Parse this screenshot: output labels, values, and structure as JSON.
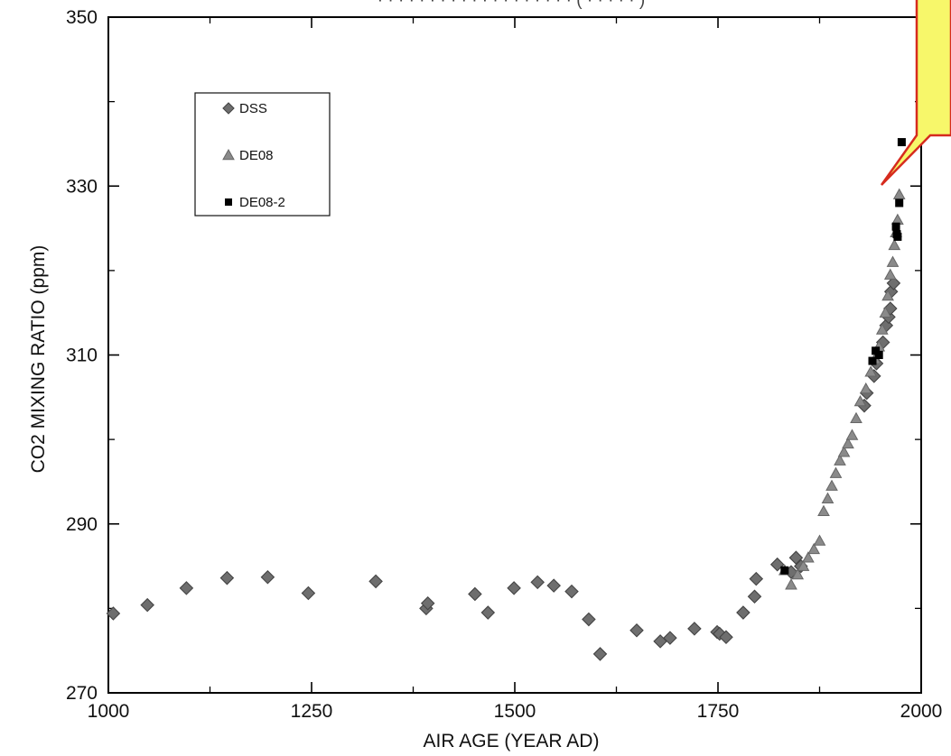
{
  "chart_data": {
    "type": "scatter",
    "title": "",
    "xlabel": "AIR AGE  (YEAR AD)",
    "ylabel": "CO2 MIXING RATIO  (ppm)",
    "xlim": [
      1000,
      2000
    ],
    "ylim": [
      270,
      350
    ],
    "x_ticks": [
      "1000",
      "1250",
      "1500",
      "1750",
      "2000"
    ],
    "y_ticks": [
      "270",
      "290",
      "310",
      "330",
      "350"
    ],
    "legend_position": "top-left",
    "grid": false,
    "callout": {
      "fill": "#f7f76a",
      "stroke": "#d62b1e"
    },
    "series": [
      {
        "name": "DSS",
        "marker": "diamond",
        "color": "#6e6e6e",
        "points": [
          [
            1006,
            279.4
          ],
          [
            1048,
            280.4
          ],
          [
            1096,
            282.4
          ],
          [
            1146,
            283.6
          ],
          [
            1196,
            283.7
          ],
          [
            1246,
            281.8
          ],
          [
            1329,
            283.2
          ],
          [
            1391,
            280.0
          ],
          [
            1393,
            280.6
          ],
          [
            1451,
            281.7
          ],
          [
            1467,
            279.5
          ],
          [
            1499,
            282.4
          ],
          [
            1528,
            283.1
          ],
          [
            1548,
            282.7
          ],
          [
            1570,
            282.0
          ],
          [
            1591,
            278.7
          ],
          [
            1605,
            274.6
          ],
          [
            1650,
            277.4
          ],
          [
            1679,
            276.1
          ],
          [
            1691,
            276.5
          ],
          [
            1721,
            277.6
          ],
          [
            1749,
            277.2
          ],
          [
            1752,
            277.0
          ],
          [
            1760,
            276.6
          ],
          [
            1781,
            279.5
          ],
          [
            1795,
            281.4
          ],
          [
            1797,
            283.5
          ],
          [
            1823,
            285.2
          ],
          [
            1840,
            284.3
          ],
          [
            1846,
            286.0
          ],
          [
            1852,
            285.0
          ],
          [
            1930,
            304.0
          ],
          [
            1933,
            305.5
          ],
          [
            1942,
            307.5
          ],
          [
            1945,
            309.0
          ],
          [
            1953,
            311.5
          ],
          [
            1957,
            313.5
          ],
          [
            1960,
            314.5
          ],
          [
            1962,
            315.5
          ],
          [
            1963,
            317.5
          ],
          [
            1966,
            318.5
          ]
        ]
      },
      {
        "name": "DE08",
        "marker": "triangle",
        "color": "#8a8a8a",
        "points": [
          [
            1832,
            284.5
          ],
          [
            1840,
            282.8
          ],
          [
            1848,
            284.0
          ],
          [
            1855,
            285.0
          ],
          [
            1861,
            286.0
          ],
          [
            1868,
            287.0
          ],
          [
            1875,
            288.0
          ],
          [
            1880,
            291.5
          ],
          [
            1885,
            293.0
          ],
          [
            1890,
            294.5
          ],
          [
            1895,
            296.0
          ],
          [
            1900,
            297.5
          ],
          [
            1905,
            298.5
          ],
          [
            1910,
            299.5
          ],
          [
            1915,
            300.5
          ],
          [
            1920,
            302.5
          ],
          [
            1925,
            304.5
          ],
          [
            1932,
            306.0
          ],
          [
            1938,
            308.0
          ],
          [
            1943,
            309.5
          ],
          [
            1948,
            311.0
          ],
          [
            1952,
            313.0
          ],
          [
            1956,
            315.0
          ],
          [
            1959,
            317.0
          ],
          [
            1962,
            319.5
          ],
          [
            1965,
            321.0
          ],
          [
            1967,
            323.0
          ],
          [
            1969,
            324.5
          ],
          [
            1971,
            326.0
          ],
          [
            1973,
            329.0
          ]
        ]
      },
      {
        "name": "DE08-2",
        "marker": "square",
        "color": "#000000",
        "points": [
          [
            1832,
            284.5
          ],
          [
            1940,
            309.3
          ],
          [
            1944,
            310.5
          ],
          [
            1948,
            310.0
          ],
          [
            1969,
            325.2
          ],
          [
            1970,
            324.3
          ],
          [
            1971,
            324.0
          ],
          [
            1973,
            328.0
          ],
          [
            1976,
            335.2
          ]
        ]
      }
    ]
  }
}
